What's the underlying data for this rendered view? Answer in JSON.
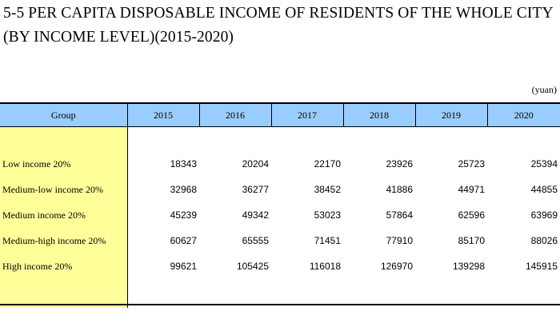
{
  "title": "5-5  PER CAPITA DISPOSABLE INCOME OF RESIDENTS OF THE WHOLE CITY (BY INCOME LEVEL)(2015-2020)",
  "unit": "(yuan)",
  "table": {
    "group_header": "Group",
    "years": [
      "2015",
      "2016",
      "2017",
      "2018",
      "2019",
      "2020"
    ],
    "rows": [
      {
        "group": "Low income 20%",
        "values": [
          "18343",
          "20204",
          "22170",
          "23926",
          "25723",
          "25394"
        ]
      },
      {
        "group": "Medium-low income 20%",
        "values": [
          "32968",
          "36277",
          "38452",
          "41886",
          "44971",
          "44855"
        ]
      },
      {
        "group": "Medium income 20%",
        "values": [
          "45239",
          "49342",
          "53023",
          "57864",
          "62596",
          "63969"
        ]
      },
      {
        "group": "Medium-high income 20%",
        "values": [
          "60627",
          "65555",
          "71451",
          "77910",
          "85170",
          "88026"
        ]
      },
      {
        "group": "High income 20%",
        "values": [
          "99621",
          "105425",
          "116018",
          "126970",
          "139298",
          "145915"
        ]
      }
    ]
  },
  "colors": {
    "header_bg": "#99ccff",
    "group_col_bg": "#ffff99"
  }
}
